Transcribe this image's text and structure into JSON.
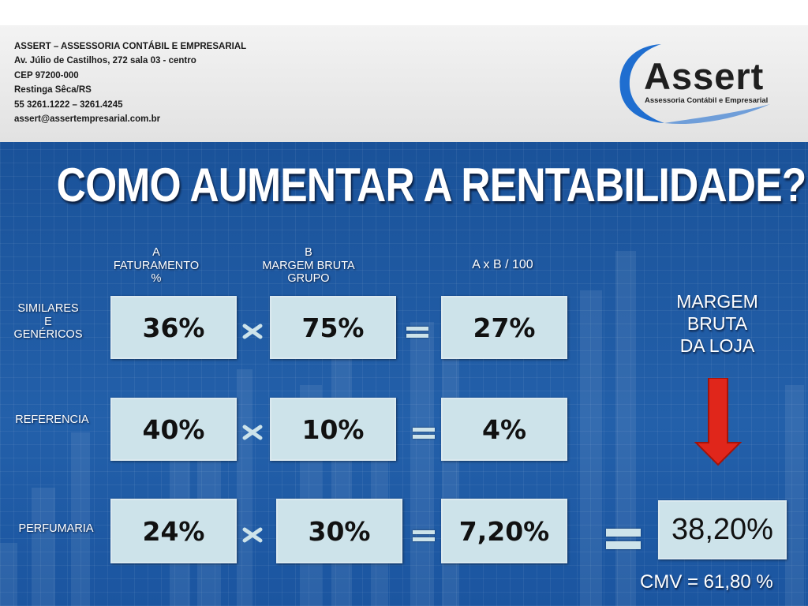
{
  "company": {
    "lines": [
      "ASSERT – ASSESSORIA CONTÁBIL E EMPRESARIAL",
      "Av. Júlio de Castilhos, 272 sala 03 - centro",
      "CEP 97200-000",
      "Restinga Sêca/RS",
      "55 3261.1222 – 3261.4245",
      "assert@assertempresarial.com.br"
    ]
  },
  "logo": {
    "word": "Assert",
    "subtitle": "Assessoria Contábil e Empresarial",
    "accent_color": "#1f6ed0"
  },
  "title": "COMO AUMENTAR A RENTABILIDADE?",
  "columns": {
    "a": [
      "A",
      "FATURAMENTO",
      "%"
    ],
    "b": [
      "B",
      "MARGEM BRUTA",
      "GRUPO"
    ],
    "c": "A x B / 100"
  },
  "rows": [
    {
      "label": [
        "SIMILARES",
        "E",
        "GENÉRICOS"
      ],
      "a": "36%",
      "b": "75%",
      "c": "27%"
    },
    {
      "label": [
        "REFERENCIA"
      ],
      "a": "40%",
      "b": "10%",
      "c": "4%"
    },
    {
      "label": [
        "PERFUMARIA"
      ],
      "a": "24%",
      "b": "30%",
      "c": "7,20%"
    }
  ],
  "margem": [
    "MARGEM",
    "BRUTA",
    "DA LOJA"
  ],
  "total": "38,20%",
  "cmv": "CMV = 61,80 %",
  "colors": {
    "box": "#cde3ea",
    "background": "#1d57a0",
    "arrow": "#e0261b"
  }
}
